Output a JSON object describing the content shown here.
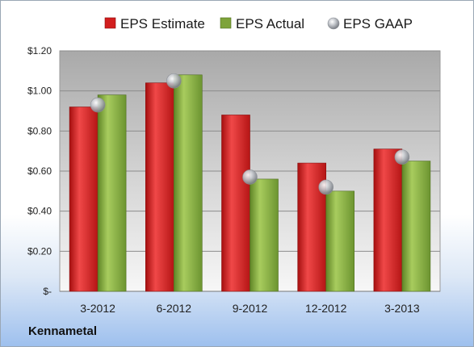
{
  "company": "Kennametal",
  "chart_data": {
    "type": "bar",
    "categories": [
      "3-2012",
      "6-2012",
      "9-2012",
      "12-2012",
      "3-2013"
    ],
    "series": [
      {
        "name": "EPS Estimate",
        "type": "bar",
        "color": "#d21e1e",
        "values": [
          0.92,
          1.04,
          0.88,
          0.64,
          0.71
        ]
      },
      {
        "name": "EPS Actual",
        "type": "bar",
        "color": "#7ea33a",
        "values": [
          0.98,
          1.08,
          0.56,
          0.5,
          0.65
        ]
      },
      {
        "name": "EPS GAAP",
        "type": "marker",
        "color": "#b9bcc2",
        "values": [
          0.93,
          1.05,
          0.57,
          0.52,
          0.67
        ]
      }
    ],
    "y_ticks": [
      "$-",
      "$0.20",
      "$0.40",
      "$0.60",
      "$0.80",
      "$1.00",
      "$1.20"
    ],
    "ylim": [
      0,
      1.2
    ],
    "grid": true,
    "legend_position": "top"
  }
}
